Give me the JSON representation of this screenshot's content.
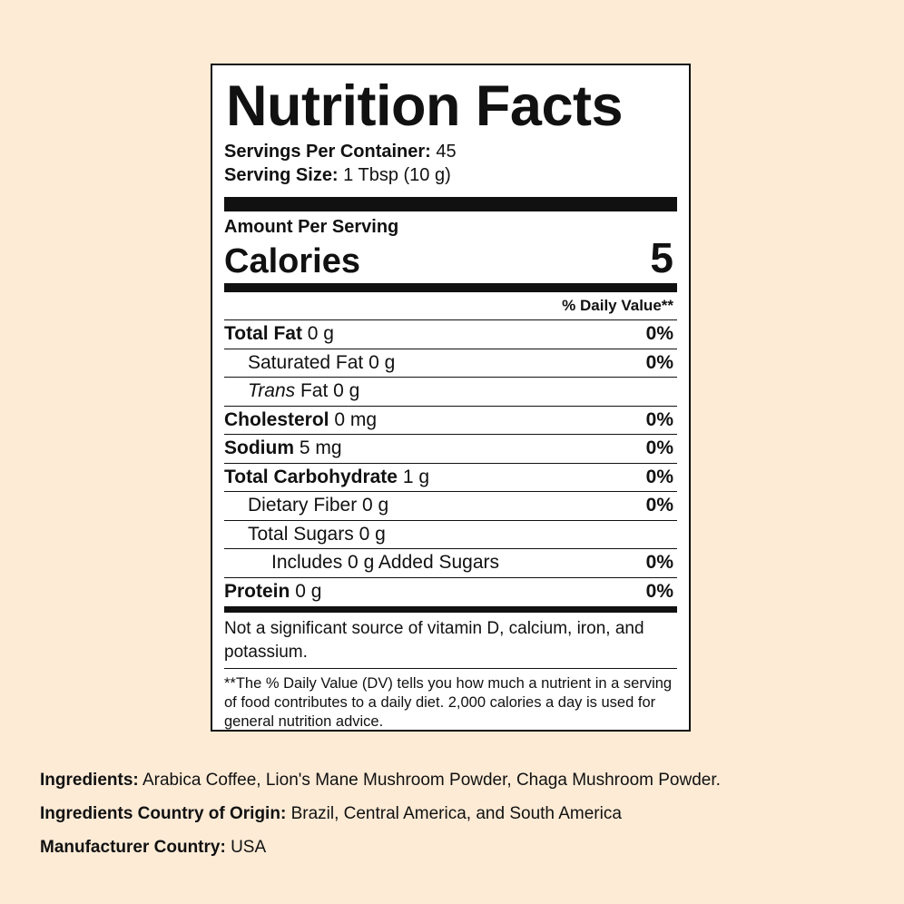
{
  "label": {
    "title": "Nutrition Facts",
    "servings_per_container_label": "Servings Per Container:",
    "servings_per_container_value": "45",
    "serving_size_label": "Serving Size:",
    "serving_size_value": "1 Tbsp (10 g)",
    "amount_per_serving": "Amount Per Serving",
    "calories_label": "Calories",
    "calories_value": "5",
    "daily_value_header": "% Daily Value**",
    "nutrients": [
      {
        "name": "Total Fat",
        "amount": "0 g",
        "dv": "0%"
      },
      {
        "name": "Saturated Fat",
        "amount": "0 g",
        "dv": "0%"
      },
      {
        "name": "Trans",
        "name_rest": "Fat",
        "amount": "0 g",
        "dv": ""
      },
      {
        "name": "Cholesterol",
        "amount": "0 mg",
        "dv": "0%"
      },
      {
        "name": "Sodium",
        "amount": "5 mg",
        "dv": "0%"
      },
      {
        "name": "Total Carbohydrate",
        "amount": "1 g",
        "dv": "0%"
      },
      {
        "name": "Dietary Fiber",
        "amount": "0 g",
        "dv": "0%"
      },
      {
        "name": "Total Sugars",
        "amount": "0 g",
        "dv": ""
      },
      {
        "name": "Includes 0 g Added Sugars",
        "amount": "",
        "dv": "0%"
      },
      {
        "name": "Protein",
        "amount": "0 g",
        "dv": "0%"
      }
    ],
    "vitamins_note": "Not a significant source of vitamin D, calcium, iron, and potassium.",
    "footnote": "**The % Daily Value (DV) tells you how much a nutrient in a serving of food contributes to a daily diet. 2,000 calories a day is used for general nutrition advice."
  },
  "info": {
    "ingredients_label": "Ingredients:",
    "ingredients_value": "Arabica Coffee, Lion's Mane Mushroom Powder, Chaga Mushroom Powder.",
    "origin_label": "Ingredients Country of Origin:",
    "origin_value": "Brazil, Central America, and South America",
    "manufacturer_label": "Manufacturer Country:",
    "manufacturer_value": "USA"
  },
  "colors": {
    "background": "#fdebd6",
    "label_background": "#ffffff",
    "ink": "#111111"
  }
}
